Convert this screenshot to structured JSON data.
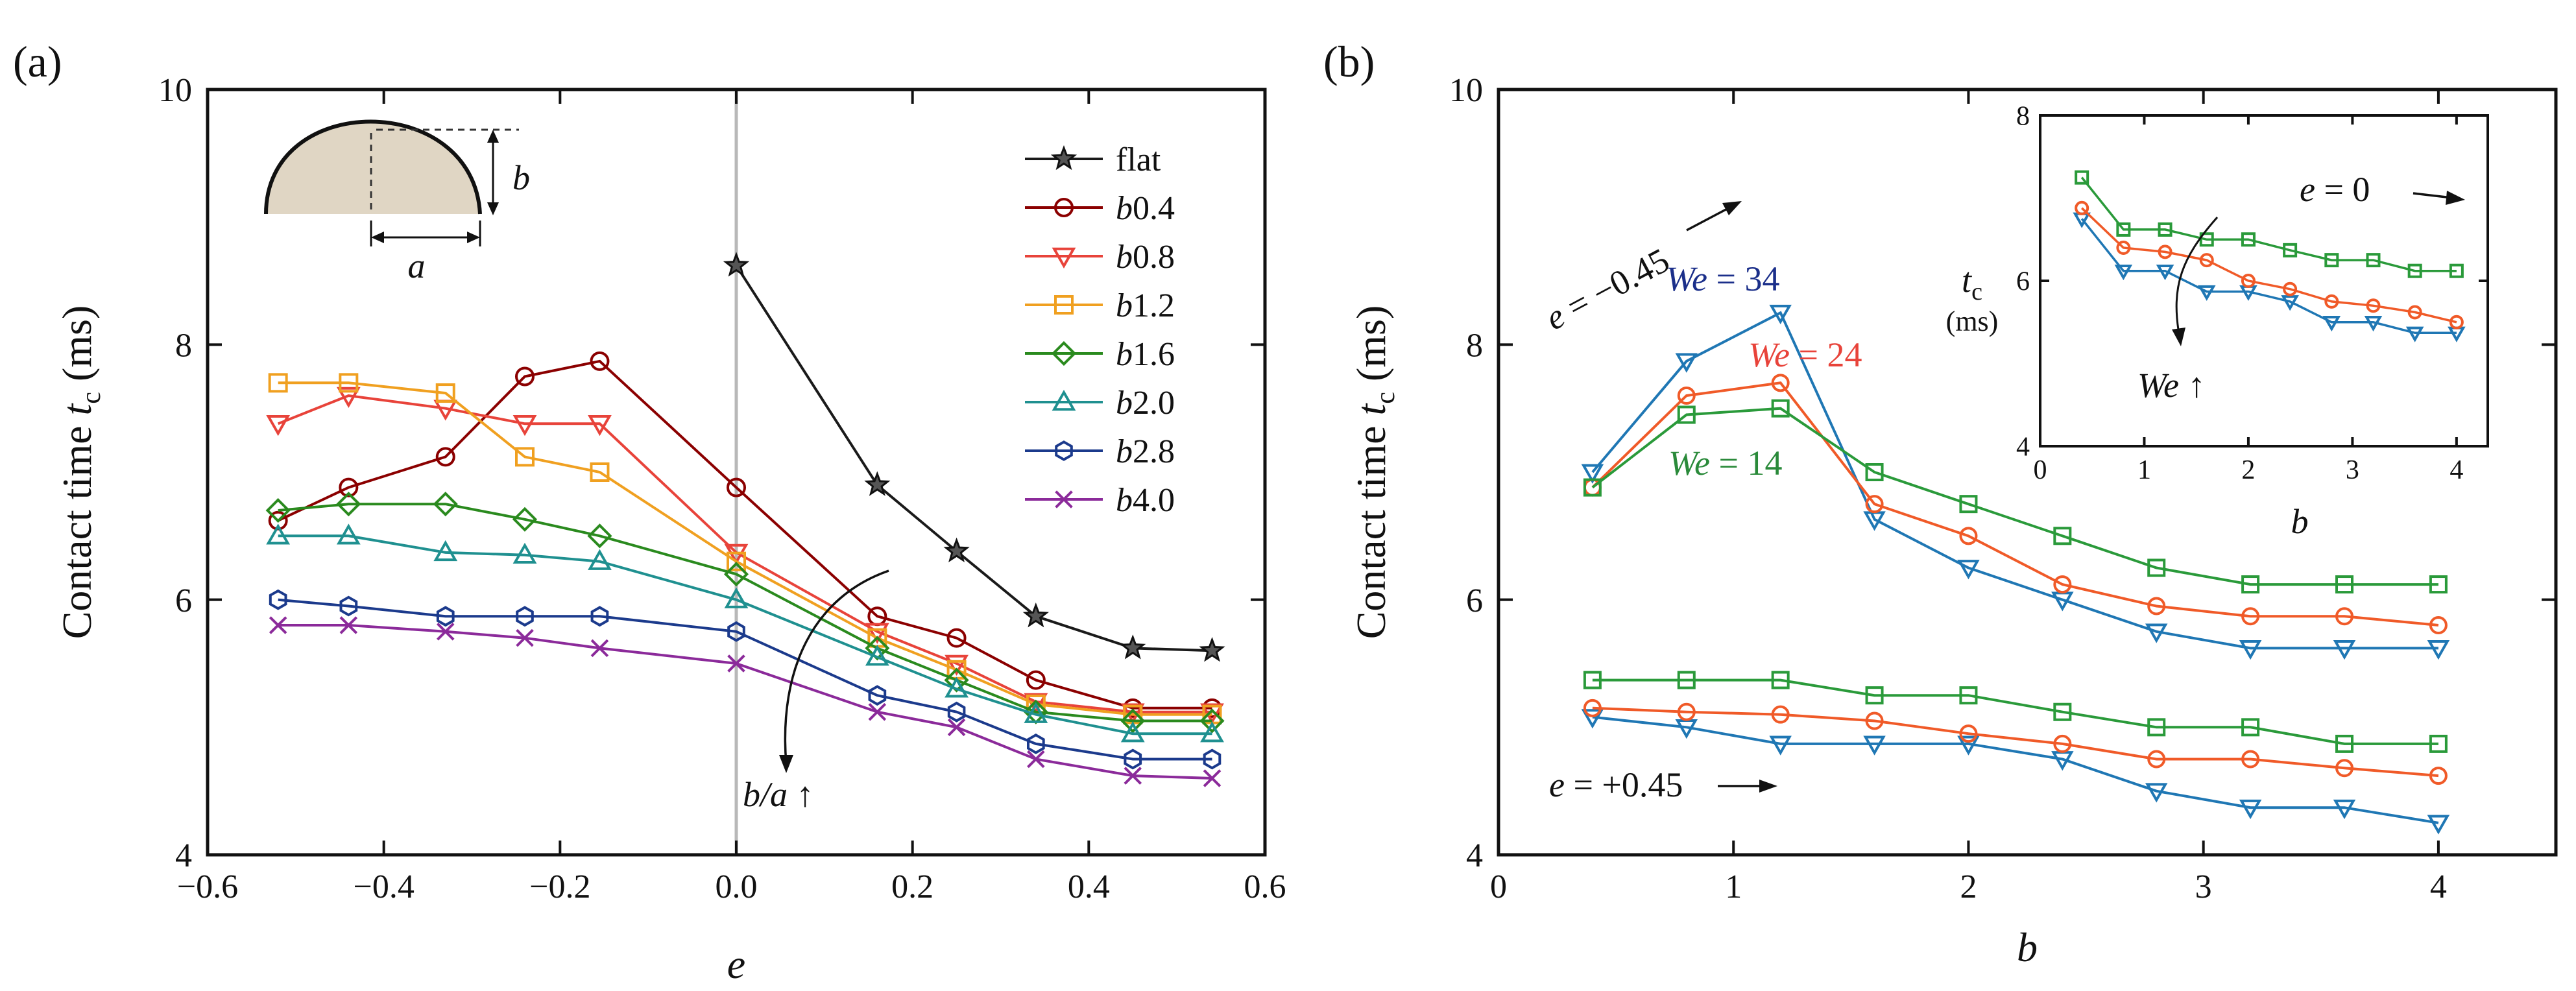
{
  "panel_labels": {
    "a": "(a)",
    "b": "(b)"
  },
  "chart_data": [
    {
      "type": "line",
      "panel": "(a)",
      "xlabel": "e",
      "ylabel": "Contact time t c (ms)",
      "ylabel_parts": {
        "prefix": "Contact time ",
        "var": "t",
        "sub": "c",
        "suffix": " (ms)"
      },
      "xlim": [
        -0.6,
        0.6
      ],
      "ylim": [
        4,
        10
      ],
      "xticks": [
        -0.6,
        -0.4,
        -0.2,
        0.0,
        0.2,
        0.4,
        0.6
      ],
      "xtick_labels": [
        "−0.6",
        "−0.4",
        "−0.2",
        "0.0",
        "0.2",
        "0.4",
        "0.6"
      ],
      "yticks": [
        4,
        6,
        8,
        10
      ],
      "ytick_labels": [
        "4",
        "6",
        "8",
        "10"
      ],
      "vertical_line_x": 0.0,
      "legend_position": "top-right",
      "series": [
        {
          "name": "flat",
          "color": "#1a1a1a",
          "marker": "star",
          "x": [
            0.0,
            0.16,
            0.25,
            0.34,
            0.45,
            0.54
          ],
          "y": [
            8.62,
            6.9,
            6.38,
            5.87,
            5.62,
            5.6
          ]
        },
        {
          "name": "b0.4",
          "color": "#8b0000",
          "marker": "circle",
          "x": [
            -0.52,
            -0.44,
            -0.33,
            -0.24,
            -0.155,
            0.0,
            0.16,
            0.25,
            0.34,
            0.45,
            0.54
          ],
          "y": [
            6.62,
            6.88,
            7.12,
            7.75,
            7.87,
            6.88,
            5.87,
            5.7,
            5.37,
            5.15,
            5.15
          ]
        },
        {
          "name": "b0.8",
          "color": "#e8433a",
          "marker": "triangle-down",
          "x": [
            -0.52,
            -0.44,
            -0.33,
            -0.24,
            -0.155,
            0.0,
            0.16,
            0.25,
            0.34,
            0.45,
            0.54
          ],
          "y": [
            7.38,
            7.6,
            7.5,
            7.38,
            7.38,
            6.37,
            5.75,
            5.5,
            5.2,
            5.12,
            5.12
          ]
        },
        {
          "name": "b1.2",
          "color": "#f0a020",
          "marker": "square",
          "x": [
            -0.52,
            -0.44,
            -0.33,
            -0.24,
            -0.155,
            0.0,
            0.16,
            0.25,
            0.34,
            0.45,
            0.54
          ],
          "y": [
            7.7,
            7.7,
            7.62,
            7.12,
            7.0,
            6.3,
            5.7,
            5.45,
            5.18,
            5.1,
            5.1
          ]
        },
        {
          "name": "b1.6",
          "color": "#2a8a1e",
          "marker": "diamond",
          "x": [
            -0.52,
            -0.44,
            -0.33,
            -0.24,
            -0.155,
            0.0,
            0.16,
            0.25,
            0.34,
            0.45,
            0.54
          ],
          "y": [
            6.7,
            6.75,
            6.75,
            6.63,
            6.5,
            6.2,
            5.62,
            5.37,
            5.12,
            5.05,
            5.05
          ]
        },
        {
          "name": "b2.0",
          "color": "#1f9090",
          "marker": "triangle-up",
          "x": [
            -0.52,
            -0.44,
            -0.33,
            -0.24,
            -0.155,
            0.0,
            0.16,
            0.25,
            0.34,
            0.45,
            0.54
          ],
          "y": [
            6.5,
            6.5,
            6.37,
            6.35,
            6.3,
            6.0,
            5.55,
            5.3,
            5.1,
            4.95,
            4.95
          ]
        },
        {
          "name": "b2.8",
          "color": "#1b3a8c",
          "marker": "hexagon",
          "x": [
            -0.52,
            -0.44,
            -0.33,
            -0.24,
            -0.155,
            0.0,
            0.16,
            0.25,
            0.34,
            0.45,
            0.54
          ],
          "y": [
            6.0,
            5.95,
            5.87,
            5.87,
            5.87,
            5.75,
            5.25,
            5.12,
            4.87,
            4.75,
            4.75
          ]
        },
        {
          "name": "b4.0",
          "color": "#8b2a9a",
          "marker": "x",
          "x": [
            -0.52,
            -0.44,
            -0.33,
            -0.24,
            -0.155,
            0.0,
            0.16,
            0.25,
            0.34,
            0.45,
            0.54
          ],
          "y": [
            5.8,
            5.8,
            5.75,
            5.7,
            5.62,
            5.5,
            5.12,
            5.0,
            4.75,
            4.62,
            4.6
          ]
        }
      ],
      "annotations": [
        {
          "text": "b/a ↑",
          "italic_part": "b/a",
          "rest": " ↑"
        }
      ],
      "inset_schematic_labels": {
        "height": "b",
        "width": "a"
      }
    },
    {
      "type": "line",
      "panel": "(b)",
      "xlabel": "b",
      "ylabel_parts": {
        "prefix": "Contact time ",
        "var": "t",
        "sub": "c",
        "suffix": " (ms)"
      },
      "xlim": [
        0,
        4.5
      ],
      "ylim": [
        4,
        10
      ],
      "xticks": [
        0,
        1,
        2,
        3,
        4
      ],
      "xtick_labels": [
        "0",
        "1",
        "2",
        "3",
        "4"
      ],
      "yticks": [
        4,
        6,
        8,
        10
      ],
      "ytick_labels": [
        "4",
        "6",
        "8",
        "10"
      ],
      "groups": [
        {
          "label": "e = −0.45",
          "series": [
            {
              "name": "We = 34",
              "color": "#1f77b4",
              "marker": "triangle-down",
              "x": [
                0.4,
                0.8,
                1.2,
                1.6,
                2.0,
                2.4,
                2.8,
                3.2,
                3.6,
                4.0
              ],
              "y": [
                7.0,
                7.87,
                8.25,
                6.63,
                6.25,
                6.0,
                5.75,
                5.62,
                5.62,
                5.62
              ]
            },
            {
              "name": "We = 24",
              "color": "#f05a28",
              "marker": "circle",
              "x": [
                0.4,
                0.8,
                1.2,
                1.6,
                2.0,
                2.4,
                2.8,
                3.2,
                3.6,
                4.0
              ],
              "y": [
                6.88,
                7.6,
                7.7,
                6.75,
                6.5,
                6.12,
                5.95,
                5.87,
                5.87,
                5.8
              ]
            },
            {
              "name": "We = 14",
              "color": "#2a9a3a",
              "marker": "square",
              "x": [
                0.4,
                0.8,
                1.2,
                1.6,
                2.0,
                2.4,
                2.8,
                3.2,
                3.6,
                4.0
              ],
              "y": [
                6.88,
                7.45,
                7.5,
                7.0,
                6.75,
                6.5,
                6.25,
                6.12,
                6.12,
                6.12
              ]
            }
          ]
        },
        {
          "label": "e = +0.45",
          "series": [
            {
              "name": "We = 34",
              "color": "#1f77b4",
              "marker": "triangle-down",
              "x": [
                0.4,
                0.8,
                1.2,
                1.6,
                2.0,
                2.4,
                2.8,
                3.2,
                3.6,
                4.0
              ],
              "y": [
                5.08,
                5.0,
                4.87,
                4.87,
                4.87,
                4.75,
                4.5,
                4.37,
                4.37,
                4.25
              ]
            },
            {
              "name": "We = 24",
              "color": "#f05a28",
              "marker": "circle",
              "x": [
                0.4,
                0.8,
                1.2,
                1.6,
                2.0,
                2.4,
                2.8,
                3.2,
                3.6,
                4.0
              ],
              "y": [
                5.15,
                5.12,
                5.1,
                5.05,
                4.95,
                4.87,
                4.75,
                4.75,
                4.68,
                4.62
              ]
            },
            {
              "name": "We = 14",
              "color": "#2a9a3a",
              "marker": "square",
              "x": [
                0.4,
                0.8,
                1.2,
                1.6,
                2.0,
                2.4,
                2.8,
                3.2,
                3.6,
                4.0
              ],
              "y": [
                5.37,
                5.37,
                5.37,
                5.25,
                5.25,
                5.12,
                5.0,
                5.0,
                4.87,
                4.87
              ]
            }
          ]
        }
      ],
      "annotations": {
        "e_neg": {
          "prefix": "e",
          "rest": " = −0.45"
        },
        "e_pos": {
          "prefix": "e",
          "rest": " = +0.45"
        },
        "we34": {
          "prefix": "We",
          "rest": " = 34"
        },
        "we24": {
          "prefix": "We",
          "rest": " = 24"
        },
        "we14": {
          "prefix": "We",
          "rest": " = 14"
        }
      },
      "inset": {
        "xlabel": "b",
        "ylabel_var": "t",
        "ylabel_sub": "c",
        "ylabel_units": "(ms)",
        "xlim": [
          0,
          4.3
        ],
        "ylim": [
          4,
          8
        ],
        "xticks": [
          0,
          1,
          2,
          3,
          4
        ],
        "xtick_labels": [
          "0",
          "1",
          "2",
          "3",
          "4"
        ],
        "yticks": [
          4,
          6,
          8
        ],
        "ytick_labels": [
          "4",
          "6",
          "8"
        ],
        "annotation_e": {
          "prefix": "e",
          "rest": " = 0"
        },
        "annotation_we": {
          "prefix": "We",
          "rest": " ↑"
        },
        "series": [
          {
            "name": "We = 34",
            "color": "#1f77b4",
            "marker": "triangle-down",
            "x": [
              0.4,
              0.8,
              1.2,
              1.6,
              2.0,
              2.4,
              2.8,
              3.2,
              3.6,
              4.0
            ],
            "y": [
              6.75,
              6.12,
              6.12,
              5.87,
              5.87,
              5.75,
              5.5,
              5.5,
              5.37,
              5.37
            ]
          },
          {
            "name": "We = 24",
            "color": "#f05a28",
            "marker": "circle",
            "x": [
              0.4,
              0.8,
              1.2,
              1.6,
              2.0,
              2.4,
              2.8,
              3.2,
              3.6,
              4.0
            ],
            "y": [
              6.88,
              6.4,
              6.35,
              6.25,
              6.0,
              5.9,
              5.75,
              5.7,
              5.62,
              5.5
            ]
          },
          {
            "name": "We = 14",
            "color": "#2a9a3a",
            "marker": "square",
            "x": [
              0.4,
              0.8,
              1.2,
              1.6,
              2.0,
              2.4,
              2.8,
              3.2,
              3.6,
              4.0
            ],
            "y": [
              7.25,
              6.62,
              6.62,
              6.5,
              6.5,
              6.37,
              6.25,
              6.25,
              6.12,
              6.12
            ]
          }
        ]
      }
    }
  ]
}
